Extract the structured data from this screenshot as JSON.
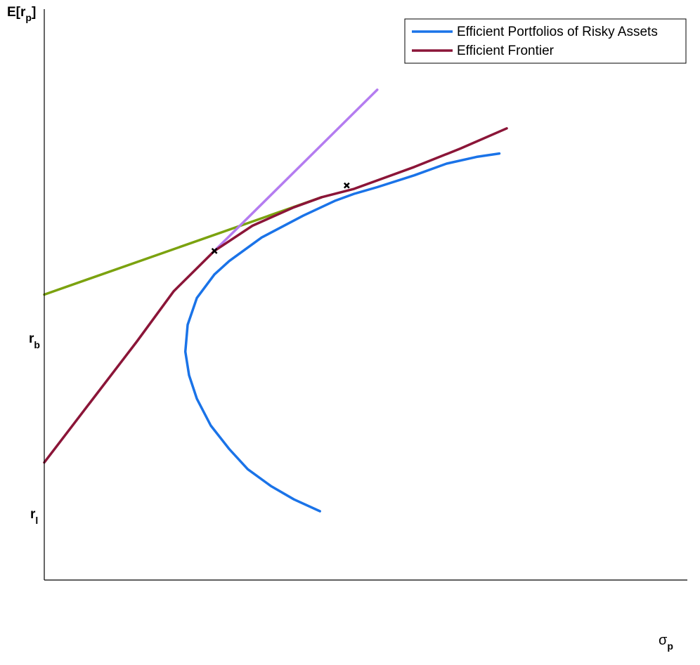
{
  "chart_data": {
    "type": "line",
    "axes": {
      "y_label": {
        "base": "E[r",
        "sub": "p",
        "close": "]"
      },
      "x_label": {
        "base": "σ",
        "sub": "p"
      },
      "y_ticks": [
        {
          "base": "r",
          "sub": "b",
          "y": 0.5
        },
        {
          "base": "r",
          "sub": "l",
          "y": 0.0
        }
      ],
      "xlim": [
        0,
        1.0
      ],
      "ylim": [
        -0.35,
        1.35
      ],
      "grid": false
    },
    "legend": {
      "placement": "top-right",
      "entries": [
        {
          "label": "Efficient Portfolios of Risky Assets",
          "color": "#1a73e8"
        },
        {
          "label": "Efficient Frontier",
          "color": "#8b1538"
        }
      ]
    },
    "series": [
      {
        "name": "Efficient Portfolios of Risky Assets",
        "color": "#1a73e8",
        "points": [
          [
            0.596,
            -0.145
          ],
          [
            0.54,
            -0.11
          ],
          [
            0.49,
            -0.07
          ],
          [
            0.44,
            -0.02
          ],
          [
            0.4,
            0.04
          ],
          [
            0.36,
            0.11
          ],
          [
            0.33,
            0.19
          ],
          [
            0.313,
            0.26
          ],
          [
            0.305,
            0.33
          ],
          [
            0.31,
            0.41
          ],
          [
            0.33,
            0.49
          ],
          [
            0.368,
            0.56
          ],
          [
            0.4,
            0.6
          ],
          [
            0.47,
            0.67
          ],
          [
            0.56,
            0.735
          ],
          [
            0.63,
            0.78
          ],
          [
            0.67,
            0.8
          ],
          [
            0.72,
            0.82
          ],
          [
            0.8,
            0.855
          ],
          [
            0.87,
            0.89
          ],
          [
            0.935,
            0.91
          ],
          [
            0.984,
            0.92
          ]
        ]
      },
      {
        "name": "Efficient Frontier",
        "color": "#8b1538",
        "points": [
          [
            0.0,
            0.0
          ],
          [
            0.1,
            0.18
          ],
          [
            0.2,
            0.36
          ],
          [
            0.28,
            0.51
          ],
          [
            0.368,
            0.63
          ],
          [
            0.45,
            0.705
          ],
          [
            0.54,
            0.76
          ],
          [
            0.6,
            0.79
          ],
          [
            0.67,
            0.815
          ],
          [
            0.8,
            0.88
          ],
          [
            0.9,
            0.935
          ],
          [
            1.0,
            0.995
          ]
        ]
      },
      {
        "color": "#7ba20f",
        "points": [
          [
            0.0,
            0.5
          ],
          [
            0.6,
            0.79
          ]
        ]
      },
      {
        "color": "#b47cf0",
        "points": [
          [
            0.368,
            0.63
          ],
          [
            0.72,
            1.11
          ]
        ]
      }
    ],
    "markers": [
      {
        "x": 0.368,
        "y": 0.63,
        "symbol": "x"
      },
      {
        "x": 0.654,
        "y": 0.825,
        "symbol": "x"
      }
    ]
  }
}
